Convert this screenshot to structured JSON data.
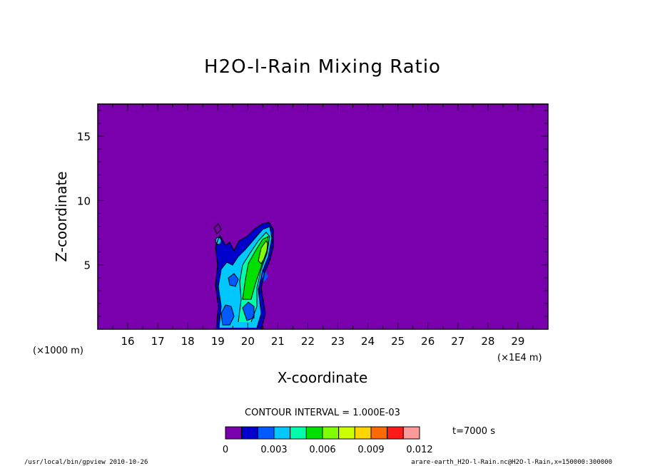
{
  "chart_data": {
    "type": "contour",
    "title": "H2O-l-Rain Mixing Ratio",
    "xlabel": "X-coordinate",
    "ylabel": "Z-coordinate",
    "x_units_left": "(×1000 m)",
    "x_units_right": "(×1E4 m)",
    "xlim": [
      15,
      30
    ],
    "ylim": [
      0,
      17.5
    ],
    "x_ticks": [
      16,
      17,
      18,
      19,
      20,
      21,
      22,
      23,
      24,
      25,
      26,
      27,
      28,
      29
    ],
    "y_ticks": [
      5,
      10,
      15
    ],
    "contour_interval_text": "CONTOUR INTERVAL = 1.000E-03",
    "time_label": "t=7000 s",
    "colorbar": {
      "levels": [
        0,
        0.001,
        0.002,
        0.003,
        0.004,
        0.005,
        0.006,
        0.007,
        0.008,
        0.009,
        0.01,
        0.011,
        0.012
      ],
      "colors": [
        "#7a00ad",
        "#0000cd",
        "#005aff",
        "#00c8ff",
        "#00ffaa",
        "#00e000",
        "#80ff00",
        "#ccff00",
        "#ffd400",
        "#ff6a00",
        "#ff1a1a",
        "#ff9a9a"
      ],
      "tick_values": [
        0,
        0.003,
        0.006,
        0.009,
        0.012
      ],
      "tick_labels": [
        "0",
        "0.003",
        "0.006",
        "0.009",
        "0.012"
      ]
    },
    "background_value_color": "#7a00ad",
    "features": [
      {
        "name": "rain plume",
        "x_range": [
          19.0,
          20.8
        ],
        "z_range": [
          0,
          8.4
        ],
        "max_value": 0.008,
        "max_location": [
          20.6,
          7.0
        ]
      }
    ]
  },
  "footer": {
    "left": "/usr/local/bin/gpview  2010-10-26",
    "right": "arare-earth_H2O-l-Rain.nc@H2O-l-Rain,x=150000:300000"
  }
}
